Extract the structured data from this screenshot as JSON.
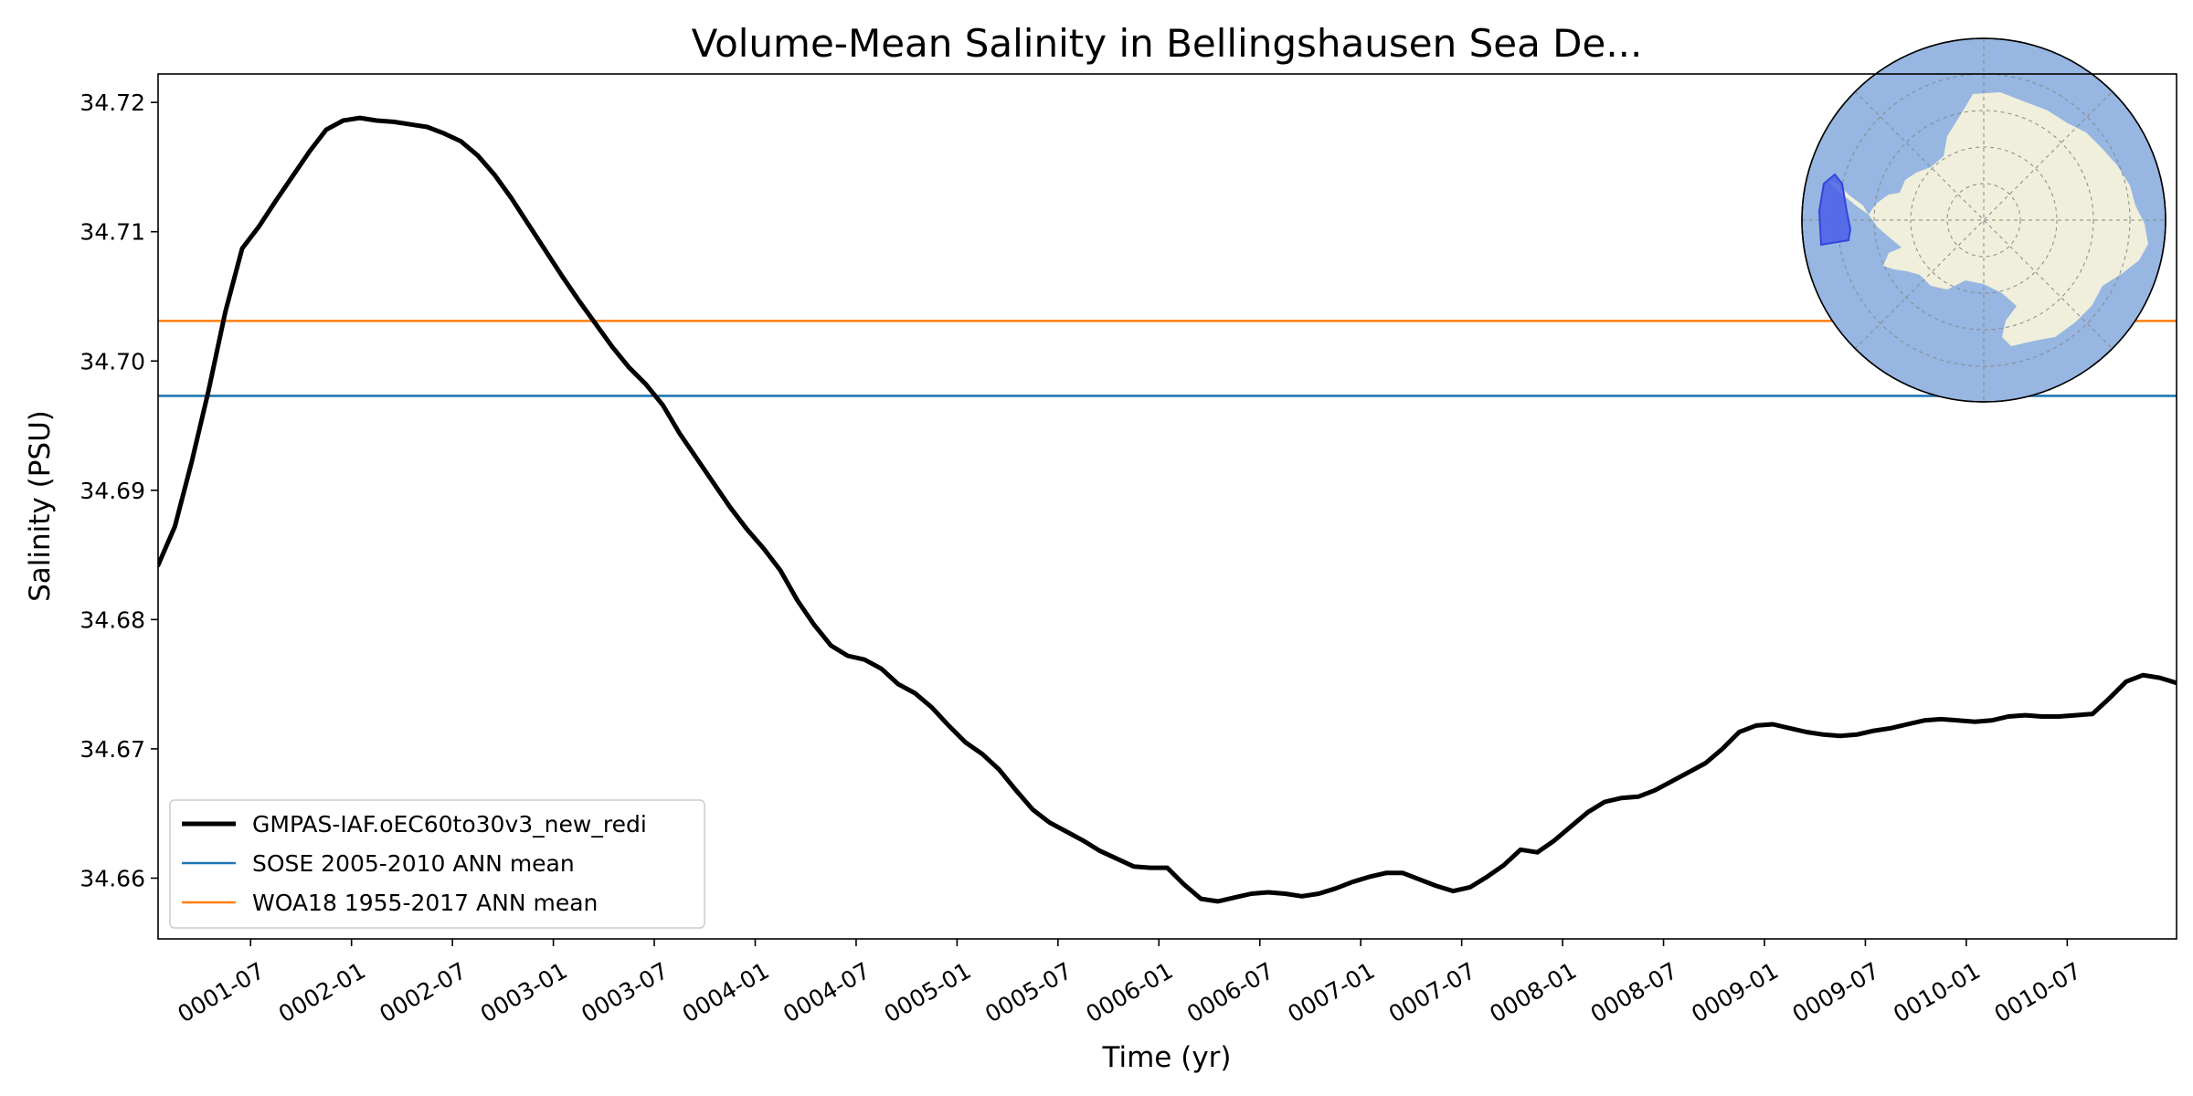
{
  "chart_data": {
    "type": "line",
    "title": "Volume-Mean Salinity in Bellingshausen Sea De...",
    "xlabel": "Time (yr)",
    "ylabel": "Salinity (PSU)",
    "x_range_months": [
      0,
      120
    ],
    "ylim": [
      34.6553,
      34.7222
    ],
    "yticks": [
      34.66,
      34.67,
      34.68,
      34.69,
      34.7,
      34.71,
      34.72
    ],
    "ytick_labels": [
      "34.66",
      "34.67",
      "34.68",
      "34.69",
      "34.70",
      "34.71",
      "34.72"
    ],
    "xticks_months": [
      5.5,
      11.5,
      17.5,
      23.5,
      29.5,
      35.5,
      41.5,
      47.5,
      53.5,
      59.5,
      65.5,
      71.5,
      77.5,
      83.5,
      89.5,
      95.5,
      101.5,
      107.5,
      113.5
    ],
    "xtick_labels": [
      "0001-07",
      "0002-01",
      "0002-07",
      "0003-01",
      "0003-07",
      "0004-01",
      "0004-07",
      "0005-01",
      "0005-07",
      "0006-01",
      "0006-07",
      "0007-01",
      "0007-07",
      "0008-01",
      "0008-07",
      "0009-01",
      "0009-07",
      "0010-01",
      "0010-07"
    ],
    "grid": false,
    "legend_position": "lower-left",
    "series": [
      {
        "name": "GMPAS-IAF.oEC60to30v3_new_redi",
        "color": "#000000",
        "x_months": [
          0,
          1,
          2,
          3,
          4,
          5,
          6,
          7,
          8,
          9,
          10,
          11,
          12,
          13,
          14,
          15,
          16,
          17,
          18,
          19,
          20,
          21,
          22,
          23,
          24,
          25,
          26,
          27,
          28,
          29,
          30,
          31,
          32,
          33,
          34,
          35,
          36,
          37,
          38,
          39,
          40,
          41,
          42,
          43,
          44,
          45,
          46,
          47,
          48,
          49,
          50,
          51,
          52,
          53,
          54,
          55,
          56,
          57,
          58,
          59,
          60,
          61,
          62,
          63,
          64,
          65,
          66,
          67,
          68,
          69,
          70,
          71,
          72,
          73,
          74,
          75,
          76,
          77,
          78,
          79,
          80,
          81,
          82,
          83,
          84,
          85,
          86,
          87,
          88,
          89,
          90,
          91,
          92,
          93,
          94,
          95,
          96,
          97,
          98,
          99,
          100,
          101,
          102,
          103,
          104,
          105,
          106,
          107,
          108,
          109,
          110,
          111,
          112,
          113,
          114,
          115,
          116,
          117,
          118,
          119,
          120
        ],
        "values": [
          34.6842,
          34.6872,
          34.6922,
          34.6977,
          34.7038,
          34.7087,
          34.7104,
          34.7124,
          34.7143,
          34.7162,
          34.7179,
          34.7186,
          34.7188,
          34.7186,
          34.7185,
          34.7183,
          34.7181,
          34.7176,
          34.717,
          34.7159,
          34.7144,
          34.7126,
          34.7106,
          34.7086,
          34.7066,
          34.7047,
          34.7029,
          34.7011,
          34.6995,
          34.6982,
          34.6966,
          34.6944,
          34.6925,
          34.6906,
          34.6887,
          34.687,
          34.6855,
          34.6838,
          34.6815,
          34.6796,
          34.678,
          34.6772,
          34.6769,
          34.6762,
          34.675,
          34.6743,
          34.6732,
          34.6718,
          34.6705,
          34.6696,
          34.6684,
          34.6668,
          34.6653,
          34.6643,
          34.6636,
          34.6629,
          34.6621,
          34.6615,
          34.6609,
          34.6608,
          34.6608,
          34.6595,
          34.6584,
          34.6582,
          34.6585,
          34.6588,
          34.6589,
          34.6588,
          34.6586,
          34.6588,
          34.6592,
          34.6597,
          34.6601,
          34.6604,
          34.6604,
          34.6599,
          34.6594,
          34.659,
          34.6593,
          34.6601,
          34.661,
          34.6622,
          34.662,
          34.6629,
          34.664,
          34.6651,
          34.6659,
          34.6662,
          34.6663,
          34.6668,
          34.6675,
          34.6682,
          34.6689,
          34.67,
          34.6713,
          34.6718,
          34.6719,
          34.6716,
          34.6713,
          34.6711,
          34.671,
          34.6711,
          34.6714,
          34.6716,
          34.6719,
          34.6722,
          34.6723,
          34.6722,
          34.6721,
          34.6722,
          34.6725,
          34.6726,
          34.6725,
          34.6725,
          34.6726,
          34.6727,
          34.6739,
          34.6752,
          34.6757,
          34.6755,
          34.6751
        ]
      },
      {
        "name": "SOSE 2005-2010 ANN mean",
        "color": "#1f77b4",
        "constant": 34.6973
      },
      {
        "name": "WOA18 1955-2017 ANN mean",
        "color": "#ff7f0e",
        "constant": 34.7031
      }
    ]
  },
  "inset_map": {
    "description_name": "antarctica-region-map",
    "ocean_color": "#97b6e1",
    "land_color": "#efefdb",
    "region_color": "#4a5fe8"
  }
}
